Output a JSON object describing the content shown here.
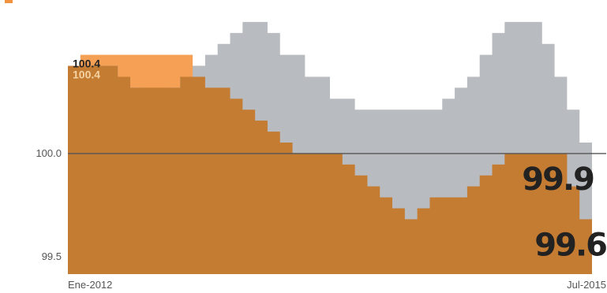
{
  "chart_data": {
    "type": "area",
    "legend": [
      {
        "label": "",
        "color": "#f0923e"
      }
    ],
    "x": [
      "Ene-2012",
      "Feb-2012",
      "Mar-2012",
      "Abr-2012",
      "May-2012",
      "Jun-2012",
      "Jul-2012",
      "Ago-2012",
      "Sep-2012",
      "Oct-2012",
      "Nov-2012",
      "Dic-2012",
      "Ene-2013",
      "Feb-2013",
      "Mar-2013",
      "Abr-2013",
      "May-2013",
      "Jun-2013",
      "Jul-2013",
      "Ago-2013",
      "Sep-2013",
      "Oct-2013",
      "Nov-2013",
      "Dic-2013",
      "Ene-2014",
      "Feb-2014",
      "Mar-2014",
      "Abr-2014",
      "May-2014",
      "Jun-2014",
      "Jul-2014",
      "Ago-2014",
      "Sep-2014",
      "Oct-2014",
      "Nov-2014",
      "Dic-2014",
      "Ene-2015",
      "Feb-2015",
      "Mar-2015",
      "Abr-2015",
      "May-2015",
      "Jun-2015",
      "Jul-2015"
    ],
    "x_tick_labels": [
      "Ene-2012",
      "Jul-2015"
    ],
    "y_ticks": [
      99.5,
      100.0
    ],
    "y_tick_labels": [
      "99.5",
      "100.0"
    ],
    "ylim": [
      99.45,
      100.65
    ],
    "reference_line": 100.0,
    "series": [
      {
        "color": "#f5a055",
        "values": [
          100.4,
          100.45,
          100.45,
          100.45,
          100.45,
          100.45,
          100.45,
          100.45,
          100.45,
          100.45,
          100.4,
          100.4,
          100.4,
          100.35,
          100.35,
          100.3,
          100.25,
          100.2,
          100.15,
          100.1,
          100.05,
          100.0,
          100.0,
          100.0,
          100.0,
          100.0,
          100.0,
          100.0,
          100.0,
          100.0,
          100.0,
          100.0,
          100.0,
          100.0,
          100.0,
          100.0,
          100.0,
          100.0,
          100.0,
          100.0,
          100.0,
          99.95,
          99.9
        ]
      },
      {
        "color": "#b8bbbf",
        "values": [
          100.4,
          100.4,
          100.4,
          100.4,
          100.35,
          100.3,
          100.25,
          100.25,
          100.3,
          100.35,
          100.4,
          100.45,
          100.5,
          100.55,
          100.6,
          100.6,
          100.55,
          100.45,
          100.45,
          100.35,
          100.35,
          100.25,
          100.25,
          100.2,
          100.2,
          100.2,
          100.2,
          100.2,
          100.2,
          100.2,
          100.25,
          100.3,
          100.35,
          100.45,
          100.55,
          100.6,
          100.6,
          100.6,
          100.5,
          100.35,
          100.2,
          100.05,
          99.9
        ]
      },
      {
        "color": "#c47b32",
        "values": [
          100.4,
          100.4,
          100.4,
          100.4,
          100.35,
          100.3,
          100.3,
          100.3,
          100.3,
          100.35,
          100.35,
          100.3,
          100.3,
          100.25,
          100.2,
          100.15,
          100.1,
          100.05,
          100.0,
          100.0,
          100.0,
          100.0,
          99.95,
          99.9,
          99.85,
          99.8,
          99.75,
          99.7,
          99.75,
          99.8,
          99.8,
          99.8,
          99.85,
          99.9,
          99.95,
          100.0,
          100.0,
          100.0,
          100.0,
          100.0,
          99.85,
          99.7,
          99.6
        ]
      }
    ],
    "annotations": [
      {
        "text": "100.4",
        "target": "start",
        "color": "#222222"
      },
      {
        "text": "100.4",
        "target": "start",
        "color": "#f5d3a3"
      },
      {
        "text": "99.9",
        "target": "end"
      },
      {
        "text": "99.6",
        "target": "end"
      }
    ]
  }
}
